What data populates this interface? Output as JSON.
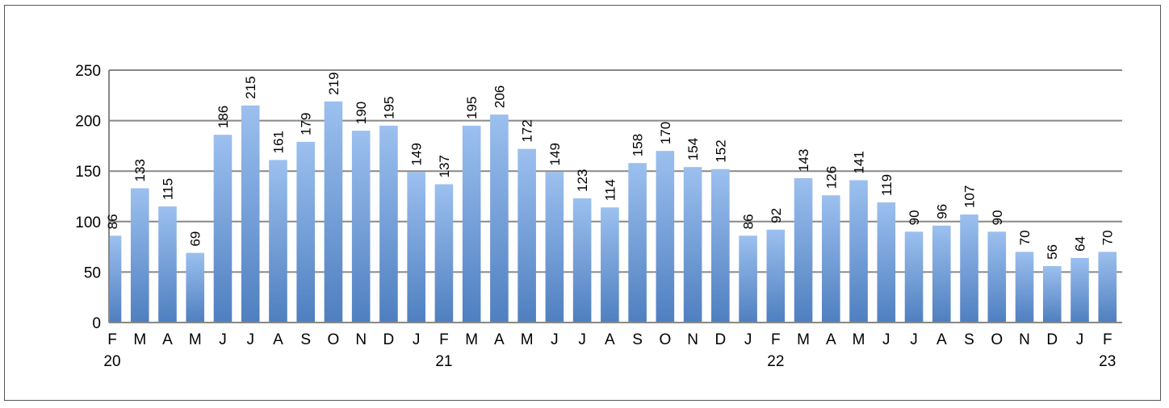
{
  "chart_data": {
    "type": "bar",
    "title": "",
    "xlabel": "",
    "ylabel": "",
    "ylim": [
      0,
      250
    ],
    "yticks": [
      0,
      50,
      100,
      150,
      200,
      250
    ],
    "grid": true,
    "legend": "none",
    "colors": {
      "bar_top": "#9cc0ef",
      "bar_bottom": "#4f7fc0",
      "grid": "#888888",
      "axis": "#888888"
    },
    "categories": [
      "F",
      "M",
      "A",
      "M",
      "J",
      "J",
      "A",
      "S",
      "O",
      "N",
      "D",
      "J",
      "F",
      "M",
      "A",
      "M",
      "J",
      "J",
      "A",
      "S",
      "O",
      "N",
      "D",
      "J",
      "F",
      "M",
      "A",
      "M",
      "J",
      "J",
      "A",
      "S",
      "O",
      "N",
      "D",
      "J",
      "F"
    ],
    "year_labels": [
      "20",
      "",
      "",
      "",
      "",
      "",
      "",
      "",
      "",
      "",
      "",
      "",
      "21",
      "",
      "",
      "",
      "",
      "",
      "",
      "",
      "",
      "",
      "",
      "",
      "22",
      "",
      "",
      "",
      "",
      "",
      "",
      "",
      "",
      "",
      "",
      "",
      "23"
    ],
    "values": [
      86,
      133,
      115,
      69,
      186,
      215,
      161,
      179,
      219,
      190,
      195,
      149,
      137,
      195,
      206,
      172,
      149,
      123,
      114,
      158,
      170,
      154,
      152,
      86,
      92,
      143,
      126,
      141,
      119,
      90,
      96,
      107,
      90,
      70,
      56,
      64,
      70
    ]
  }
}
